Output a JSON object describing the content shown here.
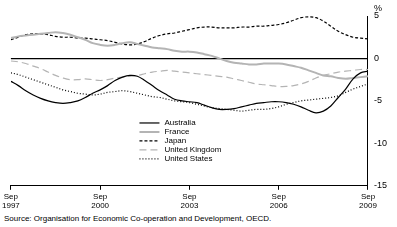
{
  "chart_data": {
    "type": "line",
    "y_label": "%",
    "source": "Source: Organisation for Economic Co-operation and Development, OECD.",
    "categories": [
      "Sep 1997",
      null,
      null,
      null,
      null,
      null,
      null,
      null,
      null,
      null,
      null,
      null,
      "Sep 2000",
      null,
      null,
      null,
      null,
      null,
      null,
      null,
      null,
      null,
      null,
      null,
      "Sep 2003",
      null,
      null,
      null,
      null,
      null,
      null,
      null,
      null,
      null,
      null,
      null,
      "Sep 2006",
      null,
      null,
      null,
      null,
      null,
      null,
      null,
      null,
      null,
      null,
      null,
      "Sep 2009"
    ],
    "series": [
      {
        "name": "Australia",
        "color": "#000000",
        "line_style": "solid",
        "values": [
          -2.7,
          -3.2,
          -3.8,
          -4.3,
          -4.7,
          -5.0,
          -5.2,
          -5.3,
          -5.2,
          -5.0,
          -4.6,
          -4.1,
          -3.7,
          -3.2,
          -2.6,
          -2.2,
          -2.0,
          -2.1,
          -2.6,
          -3.2,
          -3.8,
          -4.3,
          -4.8,
          -5.0,
          -5.1,
          -5.2,
          -5.5,
          -5.8,
          -6.0,
          -6.0,
          -5.9,
          -5.7,
          -5.5,
          -5.3,
          -5.2,
          -5.1,
          -5.1,
          -5.2,
          -5.4,
          -5.7,
          -6.1,
          -6.4,
          -6.2,
          -5.6,
          -4.6,
          -3.6,
          -2.4,
          -1.7,
          -1.5
        ]
      },
      {
        "name": "France",
        "color": "#b4b4b4",
        "line_style": "solid",
        "values": [
          2.4,
          2.6,
          2.7,
          2.8,
          2.9,
          3.0,
          3.1,
          3.0,
          2.8,
          2.5,
          2.2,
          1.8,
          1.6,
          1.5,
          1.6,
          1.8,
          1.9,
          1.7,
          1.5,
          1.3,
          1.2,
          1.1,
          0.9,
          0.8,
          0.8,
          0.7,
          0.5,
          0.3,
          0.0,
          -0.3,
          -0.5,
          -0.6,
          -0.7,
          -0.7,
          -0.6,
          -0.6,
          -0.6,
          -0.7,
          -0.9,
          -1.1,
          -1.4,
          -1.7,
          -2.0,
          -2.1,
          -2.3,
          -2.4,
          -2.3,
          -2.2,
          -2.1
        ]
      },
      {
        "name": "Japan",
        "color": "#000000",
        "line_style": "dashed",
        "values": [
          2.2,
          2.5,
          2.8,
          2.9,
          2.9,
          2.8,
          2.6,
          2.5,
          2.5,
          2.4,
          2.4,
          2.3,
          2.2,
          2.1,
          1.9,
          1.7,
          1.6,
          1.7,
          2.0,
          2.4,
          2.7,
          2.9,
          3.0,
          3.2,
          3.4,
          3.6,
          3.7,
          3.7,
          3.6,
          3.6,
          3.6,
          3.7,
          3.7,
          3.8,
          3.8,
          3.9,
          4.0,
          4.2,
          4.5,
          4.8,
          4.9,
          4.8,
          4.4,
          3.8,
          3.2,
          2.8,
          2.5,
          2.4,
          2.3
        ]
      },
      {
        "name": "United Kingdom",
        "color": "#b4b4b4",
        "line_style": "long_dashed",
        "values": [
          -0.3,
          -0.4,
          -0.6,
          -0.9,
          -1.2,
          -1.6,
          -2.0,
          -2.3,
          -2.5,
          -2.5,
          -2.4,
          -2.5,
          -2.6,
          -2.5,
          -2.3,
          -2.2,
          -2.1,
          -2.0,
          -1.8,
          -1.6,
          -1.5,
          -1.4,
          -1.5,
          -1.6,
          -1.7,
          -1.8,
          -1.9,
          -2.0,
          -2.1,
          -2.2,
          -2.4,
          -2.6,
          -2.8,
          -3.0,
          -3.1,
          -3.2,
          -3.3,
          -3.3,
          -3.2,
          -3.0,
          -2.7,
          -2.3,
          -2.0,
          -1.8,
          -1.6,
          -1.5,
          -1.4,
          -1.3,
          -1.3
        ]
      },
      {
        "name": "United States",
        "color": "#000000",
        "line_style": "dotted",
        "values": [
          -1.7,
          -1.9,
          -2.2,
          -2.5,
          -2.8,
          -3.1,
          -3.4,
          -3.7,
          -3.9,
          -4.1,
          -4.2,
          -4.3,
          -4.2,
          -4.0,
          -3.9,
          -3.8,
          -3.9,
          -4.1,
          -4.3,
          -4.5,
          -4.6,
          -4.8,
          -5.0,
          -5.1,
          -5.2,
          -5.4,
          -5.6,
          -5.8,
          -5.9,
          -6.0,
          -6.1,
          -6.2,
          -6.1,
          -6.0,
          -6.0,
          -5.9,
          -5.7,
          -5.4,
          -5.2,
          -5.0,
          -4.9,
          -4.8,
          -4.7,
          -4.6,
          -4.4,
          -4.0,
          -3.6,
          -3.3,
          -3.0
        ]
      }
    ],
    "ylim": [
      -15,
      5
    ],
    "yticks": [
      -15,
      -10,
      -5,
      0,
      5
    ],
    "grid": false,
    "legend": "lower center"
  }
}
